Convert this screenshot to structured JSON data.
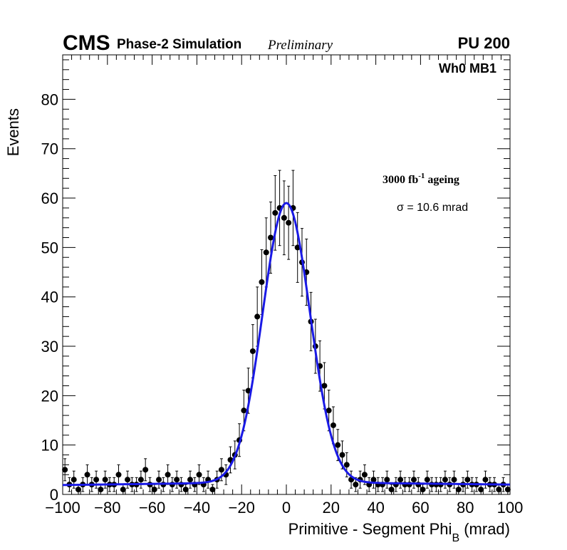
{
  "header": {
    "experiment": "CMS",
    "simulation": "Phase-2 Simulation",
    "status": "Preliminary",
    "pileup": "PU 200"
  },
  "labels": {
    "region": "Wh0 MB1",
    "ageing_base": "3000 fb",
    "ageing_exp": "-1",
    "ageing_suffix": " ageing",
    "sigma": "σ = 10.6 mrad"
  },
  "chart_data": {
    "type": "scatter",
    "title": "",
    "xlabel": "Primitive - Segment Phi",
    "xlabel_sub": "B",
    "xlabel_unit": " (mrad)",
    "ylabel": "Events",
    "xlim": [
      -100,
      100
    ],
    "ylim": [
      0,
      89
    ],
    "x_ticks": [
      -100,
      -80,
      -60,
      -40,
      -20,
      0,
      20,
      40,
      60,
      80,
      100
    ],
    "x_tick_labels": [
      "−100",
      "−80",
      "−60",
      "−40",
      "−20",
      "0",
      "20",
      "40",
      "60",
      "80",
      "100"
    ],
    "y_ticks": [
      0,
      10,
      20,
      30,
      40,
      50,
      60,
      70,
      80
    ],
    "y_tick_labels": [
      "0",
      "10",
      "20",
      "30",
      "40",
      "50",
      "60",
      "70",
      "80"
    ],
    "series": [
      {
        "name": "data",
        "style": "markers_with_poisson_errors",
        "color": "#000000",
        "x": [
          -99,
          -97,
          -95,
          -93,
          -91,
          -89,
          -87,
          -85,
          -83,
          -81,
          -79,
          -77,
          -75,
          -73,
          -71,
          -69,
          -67,
          -65,
          -63,
          -61,
          -59,
          -57,
          -55,
          -53,
          -51,
          -49,
          -47,
          -45,
          -43,
          -41,
          -39,
          -37,
          -35,
          -33,
          -31,
          -29,
          -27,
          -25,
          -23,
          -21,
          -19,
          -17,
          -15,
          -13,
          -11,
          -9,
          -7,
          -5,
          -3,
          -1,
          1,
          3,
          5,
          7,
          9,
          11,
          13,
          15,
          17,
          19,
          21,
          23,
          25,
          27,
          29,
          31,
          33,
          35,
          37,
          39,
          41,
          43,
          45,
          47,
          49,
          51,
          53,
          55,
          57,
          59,
          61,
          63,
          65,
          67,
          69,
          71,
          73,
          75,
          77,
          79,
          81,
          83,
          85,
          87,
          89,
          91,
          93,
          95,
          97,
          99
        ],
        "y": [
          5,
          2,
          3,
          1,
          2,
          4,
          2,
          3,
          1,
          3,
          2,
          2,
          4,
          1,
          3,
          2,
          2,
          3,
          5,
          2,
          1,
          3,
          2,
          4,
          2,
          3,
          2,
          1,
          3,
          2,
          4,
          2,
          3,
          1,
          3,
          5,
          4,
          7,
          8,
          11,
          17,
          21,
          29,
          36,
          43,
          49,
          52,
          57,
          58,
          56,
          55,
          58,
          50,
          47,
          45,
          35,
          30,
          26,
          22,
          17,
          14,
          10,
          8,
          6,
          3,
          2,
          3,
          4,
          2,
          3,
          2,
          2,
          3,
          1,
          2,
          3,
          2,
          2,
          3,
          2,
          1,
          3,
          2,
          2,
          2,
          3,
          2,
          3,
          1,
          2,
          3,
          2,
          2,
          1,
          3,
          2,
          2,
          1,
          2,
          1
        ]
      },
      {
        "name": "fit",
        "style": "line",
        "color": "#1a1ae6",
        "function": "gaussian_plus_baseline",
        "amplitude": 56.5,
        "mean": 0,
        "sigma": 10.6,
        "baseline_at_minus_100": 1.9,
        "baseline_at_0": 2.5,
        "baseline_at_100": 2.0
      }
    ]
  }
}
